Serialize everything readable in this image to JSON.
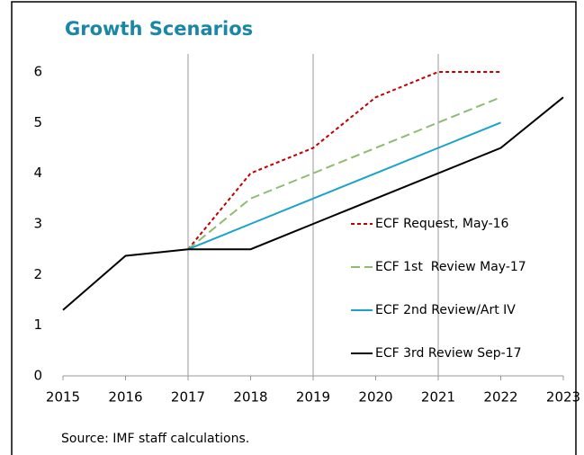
{
  "chart_data": {
    "type": "line",
    "title": "Growth Scenarios",
    "source": "Source: IMF staff calculations.",
    "x": [
      2015,
      2016,
      2017,
      2018,
      2019,
      2020,
      2021,
      2022,
      2023
    ],
    "series": [
      {
        "name": "ECF Request, May-16",
        "color": "#c00000",
        "dash": "4 3",
        "values": [
          null,
          null,
          2.5,
          4,
          4.5,
          5.5,
          6,
          6,
          null
        ]
      },
      {
        "name": "ECF 1st  Review May-17",
        "color": "#8dbb72",
        "dash": "10 5",
        "values": [
          null,
          null,
          2.5,
          3.5,
          4,
          4.5,
          5,
          5.5,
          null
        ]
      },
      {
        "name": "ECF 2nd Review/Art IV",
        "color": "#1aa3c6",
        "dash": "",
        "values": [
          null,
          null,
          2.5,
          3,
          3.5,
          4,
          4.5,
          5,
          null
        ]
      },
      {
        "name": "ECF 3rd Review Sep-17",
        "color": "#000000",
        "dash": "",
        "values": [
          1.3,
          2.37,
          2.5,
          2.5,
          3,
          3.5,
          4,
          4.5,
          5.5
        ]
      }
    ],
    "xlim": [
      2015,
      2023
    ],
    "xticks": [
      2015,
      2016,
      2017,
      2018,
      2019,
      2020,
      2021,
      2022,
      2023
    ],
    "ylim": [
      0,
      6
    ],
    "yticks": [
      0,
      1,
      2,
      3,
      4,
      5,
      6
    ],
    "vgrid": [
      2017,
      2019,
      2021
    ]
  }
}
